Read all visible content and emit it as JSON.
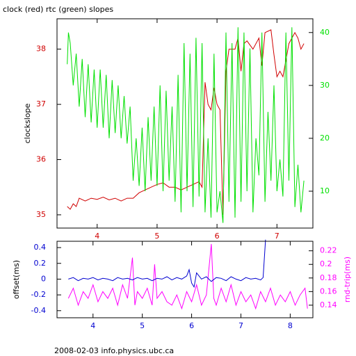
{
  "chart_data": [
    {
      "type": "line",
      "title": "clock (red) rtc (green) slopes",
      "ylabel": "clockslope",
      "xlim": [
        3.33,
        7.6
      ],
      "ylim": [
        34.76,
        38.55
      ],
      "y2lim": [
        3.03,
        42.6
      ],
      "xticks": [
        4,
        5,
        6,
        7
      ],
      "yticks": [
        35,
        36,
        37,
        38
      ],
      "y2ticks": [
        10,
        20,
        30,
        40
      ],
      "xtick_color": "#d00000",
      "ytick_color": "#d00000",
      "y2tick_color": "#00e000",
      "series": [
        {
          "color": "#d00000",
          "axis": "y",
          "x": [
            3.5,
            3.55,
            3.6,
            3.65,
            3.7,
            3.8,
            3.9,
            4.0,
            4.1,
            4.2,
            4.3,
            4.4,
            4.5,
            4.6,
            4.7,
            4.8,
            4.9,
            5.0,
            5.1,
            5.2,
            5.3,
            5.4,
            5.5,
            5.6,
            5.7,
            5.75,
            5.8,
            5.85,
            5.9,
            5.95,
            6.0,
            6.05,
            6.1,
            6.12,
            6.15,
            6.2,
            6.3,
            6.35,
            6.4,
            6.45,
            6.5,
            6.6,
            6.7,
            6.75,
            6.8,
            6.9,
            6.95,
            7.0,
            7.05,
            7.1,
            7.15,
            7.2,
            7.25,
            7.3,
            7.35,
            7.4,
            7.45
          ],
          "values": [
            35.15,
            35.1,
            35.2,
            35.15,
            35.3,
            35.25,
            35.3,
            35.28,
            35.32,
            35.27,
            35.3,
            35.25,
            35.3,
            35.3,
            35.4,
            35.45,
            35.5,
            35.55,
            35.58,
            35.5,
            35.5,
            35.45,
            35.5,
            35.55,
            35.6,
            35.5,
            37.4,
            37.0,
            36.9,
            37.3,
            37.0,
            36.9,
            35.0,
            36.0,
            37.6,
            38.0,
            38.0,
            38.2,
            37.6,
            38.1,
            38.15,
            38.0,
            38.2,
            37.7,
            38.3,
            38.35,
            37.9,
            37.5,
            37.6,
            37.5,
            37.8,
            38.1,
            38.2,
            38.3,
            38.2,
            38.0,
            38.1
          ]
        },
        {
          "color": "#00e000",
          "axis": "y2",
          "x": [
            3.5,
            3.52,
            3.55,
            3.6,
            3.65,
            3.7,
            3.75,
            3.8,
            3.85,
            3.9,
            3.95,
            4.0,
            4.05,
            4.1,
            4.15,
            4.2,
            4.25,
            4.3,
            4.35,
            4.4,
            4.45,
            4.5,
            4.55,
            4.6,
            4.65,
            4.7,
            4.75,
            4.8,
            4.85,
            4.9,
            4.95,
            5.0,
            5.05,
            5.1,
            5.15,
            5.2,
            5.25,
            5.3,
            5.35,
            5.4,
            5.45,
            5.5,
            5.55,
            5.6,
            5.65,
            5.7,
            5.75,
            5.8,
            5.85,
            5.9,
            5.95,
            6.0,
            6.05,
            6.1,
            6.15,
            6.2,
            6.25,
            6.3,
            6.35,
            6.4,
            6.45,
            6.5,
            6.55,
            6.6,
            6.65,
            6.7,
            6.75,
            6.8,
            6.85,
            6.9,
            6.95,
            7.0,
            7.05,
            7.1,
            7.15,
            7.2,
            7.25,
            7.3,
            7.35,
            7.4,
            7.45
          ],
          "values": [
            34,
            40,
            38,
            30,
            36,
            26,
            35,
            24,
            34,
            23,
            33,
            22,
            33,
            22,
            32,
            20,
            31,
            21,
            30,
            20,
            28,
            19,
            26,
            12,
            20,
            11,
            22,
            10,
            24,
            12,
            26,
            11,
            30,
            10,
            29,
            12,
            26,
            8,
            32,
            6,
            38,
            10,
            36,
            7,
            39,
            9,
            38,
            6,
            20,
            5,
            36,
            6,
            10,
            4,
            40,
            8,
            38,
            5,
            41,
            8,
            40,
            10,
            37,
            6,
            20,
            13,
            40,
            8,
            25,
            12,
            30,
            10,
            16,
            9,
            40,
            12,
            41,
            7,
            15,
            6,
            12
          ]
        }
      ]
    },
    {
      "type": "line",
      "ylabel": "offset(ms)",
      "y2label": "rnd-trip(ms)",
      "xlim": [
        3.27,
        8.46
      ],
      "ylim": [
        -0.49,
        0.48
      ],
      "y2lim": [
        0.1215,
        0.234
      ],
      "xticks": [
        4,
        5,
        6,
        7,
        8
      ],
      "yticks": [
        0.4,
        0.2,
        0,
        -0.2,
        -0.4
      ],
      "y2ticks": [
        0.22,
        0.2,
        0.18,
        0.16,
        0.14
      ],
      "xtick_color": "#0000d0",
      "ytick_color": "#0000d0",
      "y2tick_color": "#ff00ff",
      "series": [
        {
          "color": "#ff00ff",
          "axis": "y2",
          "x": [
            3.5,
            3.6,
            3.7,
            3.8,
            3.9,
            4.0,
            4.1,
            4.2,
            4.3,
            4.4,
            4.5,
            4.6,
            4.7,
            4.8,
            4.85,
            4.9,
            5.0,
            5.1,
            5.2,
            5.25,
            5.3,
            5.4,
            5.5,
            5.6,
            5.7,
            5.8,
            5.9,
            6.0,
            6.1,
            6.2,
            6.3,
            6.4,
            6.45,
            6.5,
            6.6,
            6.7,
            6.8,
            6.9,
            7.0,
            7.1,
            7.2,
            7.3,
            7.4,
            7.5,
            7.6,
            7.7,
            7.8,
            7.9,
            8.0,
            8.1,
            8.2,
            8.3,
            8.35
          ],
          "values": [
            0.15,
            0.165,
            0.14,
            0.16,
            0.15,
            0.17,
            0.145,
            0.16,
            0.15,
            0.165,
            0.14,
            0.17,
            0.15,
            0.21,
            0.14,
            0.16,
            0.15,
            0.165,
            0.14,
            0.2,
            0.15,
            0.16,
            0.145,
            0.14,
            0.155,
            0.135,
            0.16,
            0.145,
            0.17,
            0.14,
            0.155,
            0.23,
            0.15,
            0.14,
            0.165,
            0.145,
            0.17,
            0.14,
            0.16,
            0.145,
            0.155,
            0.135,
            0.16,
            0.145,
            0.165,
            0.14,
            0.155,
            0.145,
            0.16,
            0.14,
            0.155,
            0.165,
            0.135
          ]
        },
        {
          "color": "#0000d0",
          "axis": "y",
          "x": [
            3.5,
            3.6,
            3.7,
            3.8,
            3.9,
            4.0,
            4.1,
            4.2,
            4.3,
            4.4,
            4.5,
            4.6,
            4.7,
            4.8,
            4.9,
            5.0,
            5.1,
            5.2,
            5.3,
            5.4,
            5.5,
            5.6,
            5.7,
            5.8,
            5.9,
            5.95,
            6.0,
            6.05,
            6.1,
            6.2,
            6.3,
            6.4,
            6.5,
            6.6,
            6.7,
            6.8,
            6.9,
            7.0,
            7.1,
            7.2,
            7.3,
            7.4,
            7.45,
            7.5
          ],
          "values": [
            0,
            0.02,
            -0.02,
            0.01,
            0,
            0.02,
            -0.01,
            0.01,
            0,
            -0.02,
            0.02,
            0,
            0.01,
            -0.01,
            0.02,
            0,
            0.01,
            -0.02,
            0.01,
            0,
            0.03,
            -0.01,
            0.02,
            0,
            0.04,
            0.12,
            -0.05,
            -0.1,
            0.08,
            0,
            0.03,
            -0.03,
            0.02,
            0.01,
            -0.02,
            0.03,
            0,
            -0.02,
            0.02,
            0,
            0.01,
            -0.01,
            0.02,
            0.5
          ]
        }
      ]
    }
  ],
  "footer": "2008-02-03 info.physics.ubc.ca"
}
